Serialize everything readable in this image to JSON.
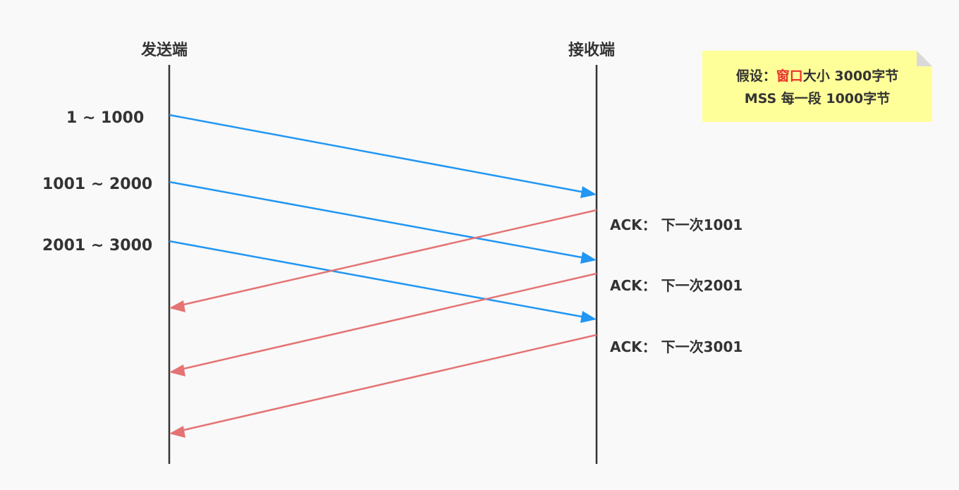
{
  "sender": {
    "label": "发送端"
  },
  "receiver": {
    "label": "接收端"
  },
  "segments": [
    {
      "label": "1 ~ 1000"
    },
    {
      "label": "1001 ~ 2000"
    },
    {
      "label": "2001 ~ 3000"
    }
  ],
  "acks": [
    {
      "label": "ACK： 下一次1001"
    },
    {
      "label": "ACK： 下一次2001"
    },
    {
      "label": "ACK： 下一次3001"
    }
  ],
  "note": {
    "prefix": "假设：",
    "highlight": "窗口",
    "suffix": "大小 3000字节",
    "line2": "MSS 每一段 1000字节"
  },
  "colors": {
    "segment_arrow": "#2196f3",
    "ack_arrow": "#e57373",
    "highlight": "#e8322d",
    "note_bg": "#ffff99",
    "timeline": "#333333"
  }
}
